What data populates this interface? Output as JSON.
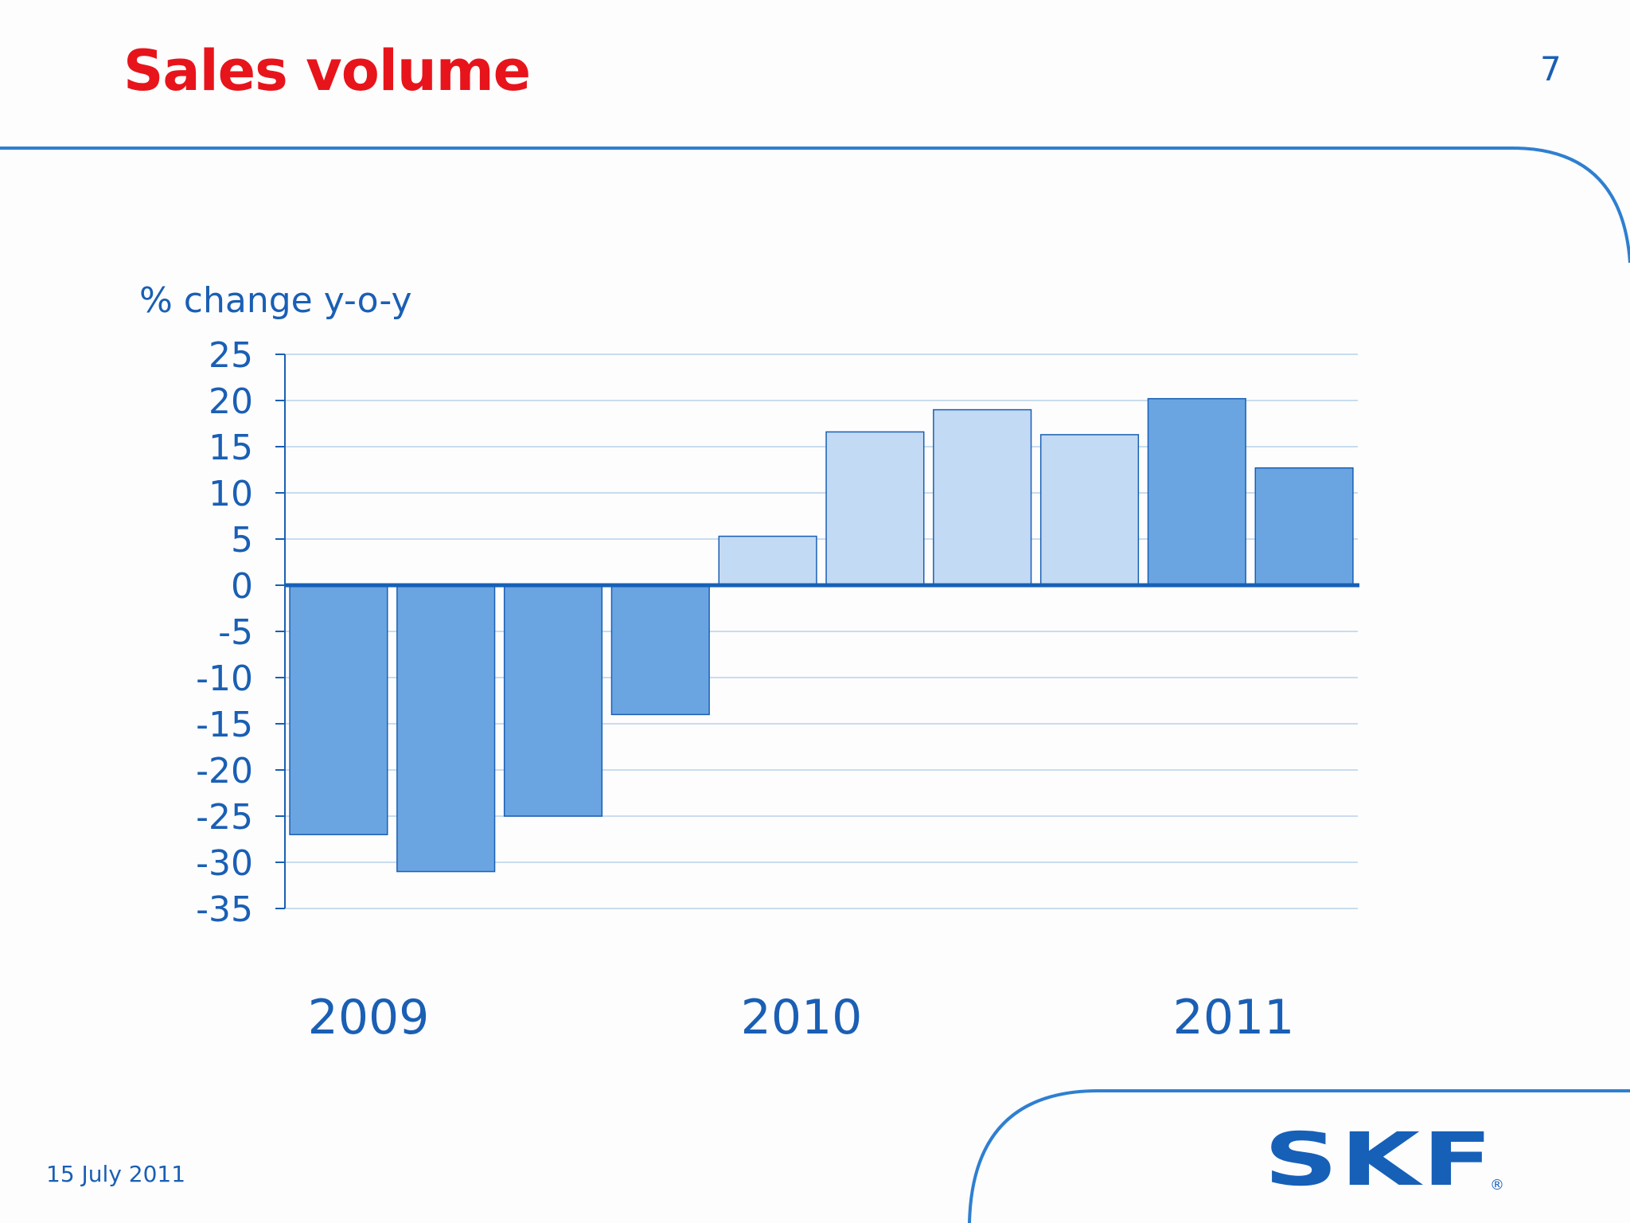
{
  "slide": {
    "title": "Sales volume",
    "page_number": "7",
    "date": "15 July 2011"
  },
  "logo": {
    "text": "SKF",
    "registered_mark": "®"
  },
  "colors": {
    "title": "#e8141b",
    "text": "#1a5fb4",
    "bar_dark": "#6aa5e2",
    "bar_light": "#c3daf4",
    "bar_stroke": "#1a5fb4",
    "grid": "#c9dcee",
    "frame": "#2f7fd0"
  },
  "chart_data": {
    "type": "bar",
    "ylabel": "% change y-o-y",
    "ylim": [
      -35,
      25
    ],
    "yticks": [
      25,
      20,
      15,
      10,
      5,
      0,
      -5,
      -10,
      -15,
      -20,
      -25,
      -30,
      -35
    ],
    "grid": true,
    "year_labels": [
      "2009",
      "2010",
      "2011"
    ],
    "values": [
      -27,
      -31,
      -25,
      -14,
      5.3,
      16.6,
      19,
      16.3,
      20.2,
      12.7
    ],
    "shades": [
      "dark",
      "dark",
      "dark",
      "dark",
      "light",
      "light",
      "light",
      "light",
      "dark",
      "dark"
    ]
  }
}
